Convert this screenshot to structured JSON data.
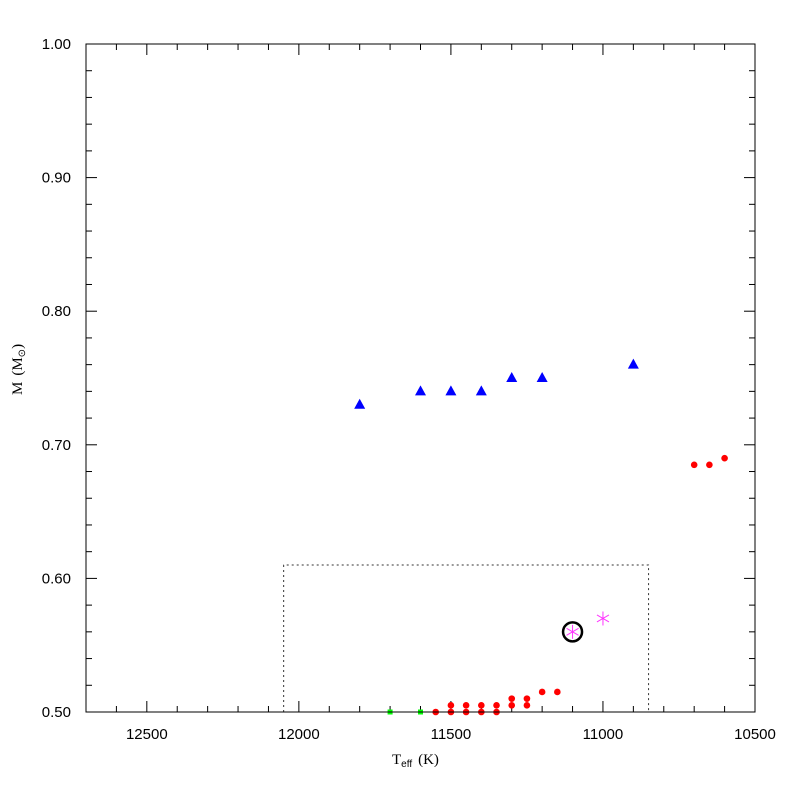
{
  "chart_data": {
    "type": "scatter",
    "xlabel": "T",
    "xlabel_sub": "eff",
    "xlabel_unit": "(K)",
    "ylabel": "M",
    "ylabel_unit_open": "(M",
    "ylabel_unit_sub": "⊙",
    "ylabel_unit_close": ")",
    "xlim": [
      12700,
      10500
    ],
    "ylim": [
      0.5,
      1.0
    ],
    "x_ticks": [
      12500,
      12000,
      11500,
      11000,
      10500
    ],
    "x_tick_labels": [
      "12500",
      "12000",
      "11500",
      "11000",
      "10500"
    ],
    "y_ticks": [
      0.5,
      0.6,
      0.7,
      0.8,
      0.9,
      1.0
    ],
    "y_tick_labels": [
      "0.50",
      "0.60",
      "0.70",
      "0.80",
      "0.90",
      "1.00"
    ],
    "grid": false,
    "series": [
      {
        "marker": "triangle",
        "color": "#0000ff",
        "points": [
          [
            11800,
            0.73
          ],
          [
            11600,
            0.74
          ],
          [
            11500,
            0.74
          ],
          [
            11400,
            0.74
          ],
          [
            11300,
            0.75
          ],
          [
            11200,
            0.75
          ],
          [
            10900,
            0.76
          ]
        ]
      },
      {
        "marker": "circle",
        "color": "#ff0000",
        "points": [
          [
            11550,
            0.5
          ],
          [
            11500,
            0.5
          ],
          [
            11500,
            0.505
          ],
          [
            11450,
            0.5
          ],
          [
            11450,
            0.505
          ],
          [
            11400,
            0.5
          ],
          [
            11400,
            0.505
          ],
          [
            11350,
            0.5
          ],
          [
            11350,
            0.505
          ],
          [
            11300,
            0.505
          ],
          [
            11300,
            0.51
          ],
          [
            11250,
            0.505
          ],
          [
            11250,
            0.51
          ],
          [
            11200,
            0.515
          ],
          [
            11150,
            0.515
          ],
          [
            10700,
            0.685
          ],
          [
            10650,
            0.685
          ],
          [
            10600,
            0.69
          ]
        ]
      },
      {
        "marker": "square",
        "color": "#00ff00",
        "points": [
          [
            11700,
            0.5
          ],
          [
            11600,
            0.5
          ]
        ]
      },
      {
        "marker": "asterisk",
        "color": "#ff33ff",
        "points": [
          [
            11100,
            0.56
          ],
          [
            11000,
            0.57
          ]
        ]
      }
    ],
    "highlight": {
      "marker": "open-circle",
      "color": "#000000",
      "point": [
        11100,
        0.56
      ]
    },
    "region_box": {
      "style": "dotted",
      "x": [
        12050,
        10850
      ],
      "y": [
        0.5,
        0.61
      ]
    }
  }
}
